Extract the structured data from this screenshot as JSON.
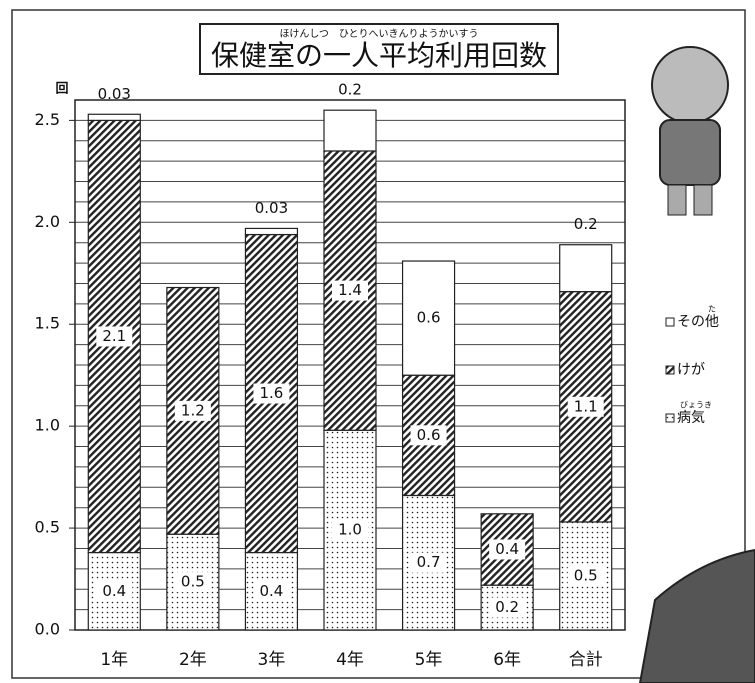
{
  "chart_data": {
    "type": "stacked_bar",
    "title": "保健室の一人平均利用回数",
    "title_ruby": "ほけんしつ　ひとりへいきんりようかいすう",
    "y_label": "回",
    "categories": [
      "1年",
      "2年",
      "3年",
      "4年",
      "5年",
      "6年",
      "合計"
    ],
    "series": [
      {
        "name": "病気",
        "ruby": "びょうき",
        "pattern": "dots",
        "color": "#000000",
        "values": [
          0.38,
          0.47,
          0.38,
          0.98,
          0.66,
          0.22,
          0.53
        ],
        "value_labels": [
          "0.4",
          "0.5",
          "0.4",
          "1.0",
          "0.7",
          "0.2",
          "0.5"
        ]
      },
      {
        "name": "けが",
        "pattern": "hatch",
        "color": "#000000",
        "values": [
          2.12,
          1.21,
          1.56,
          1.37,
          0.59,
          0.35,
          1.13
        ],
        "value_labels": [
          "2.1",
          "1.2",
          "1.6",
          "1.4",
          "0.6",
          "0.4",
          "1.1"
        ]
      },
      {
        "name": "その他",
        "ruby": "た",
        "pattern": "none",
        "color": "#ffffff",
        "values": [
          0.03,
          0,
          0.03,
          0.2,
          0.56,
          0,
          0.23
        ],
        "value_labels": [
          "0.03",
          null,
          "0.03",
          "0.2",
          "0.6",
          null,
          "0.2"
        ]
      }
    ],
    "ylim": [
      0,
      2.6
    ],
    "yticks": [
      {
        "value": 0,
        "label": "0.0"
      },
      0.5,
      {
        "value": 1,
        "label": "1.0"
      },
      1.5,
      {
        "value": 2,
        "label": "2.0"
      },
      2.5
    ],
    "minor_grid_step": 0.1,
    "grid": true,
    "legend_position": "right"
  }
}
